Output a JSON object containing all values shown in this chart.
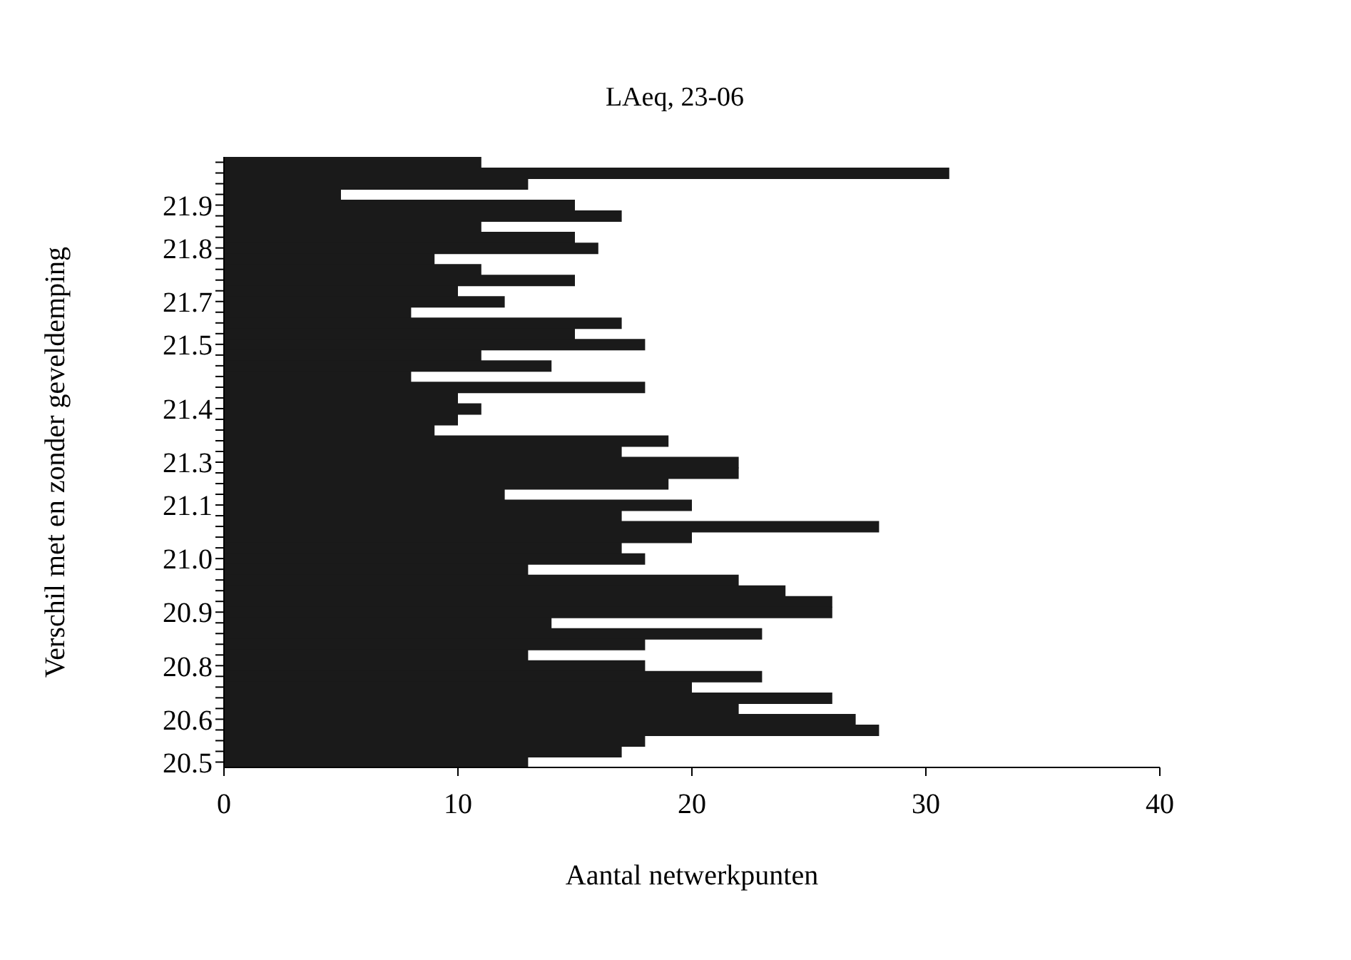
{
  "chart_data": {
    "type": "bar",
    "orientation": "horizontal",
    "title": "LAeq, 23-06",
    "xlabel": "Aantal netwerkpunten",
    "ylabel": "Verschil met en zonder geveldemping",
    "categories": [
      null,
      null,
      null,
      null,
      "21.9",
      null,
      null,
      null,
      "21.8",
      null,
      null,
      null,
      null,
      "21.7",
      null,
      null,
      null,
      "21.5",
      null,
      null,
      null,
      null,
      null,
      "21.4",
      null,
      null,
      null,
      null,
      "21.3",
      null,
      null,
      null,
      "21.1",
      null,
      null,
      null,
      null,
      "21.0",
      null,
      null,
      null,
      null,
      "20.9",
      null,
      null,
      null,
      null,
      "20.8",
      null,
      null,
      null,
      null,
      "20.6",
      null,
      null,
      null,
      "20.5"
    ],
    "values": [
      11,
      31,
      13,
      5,
      15,
      17,
      11,
      15,
      16,
      9,
      11,
      15,
      10,
      12,
      8,
      17,
      15,
      18,
      11,
      14,
      8,
      18,
      10,
      11,
      10,
      9,
      19,
      17,
      22,
      22,
      19,
      12,
      20,
      17,
      28,
      20,
      17,
      18,
      13,
      22,
      24,
      26,
      26,
      14,
      23,
      18,
      13,
      18,
      23,
      20,
      26,
      22,
      27,
      28,
      18,
      17,
      13
    ],
    "color": "#1a1a1a",
    "xlim": [
      0,
      40
    ],
    "xticks": [
      0,
      10,
      20,
      30,
      40
    ],
    "grid": false,
    "legend": false
  }
}
